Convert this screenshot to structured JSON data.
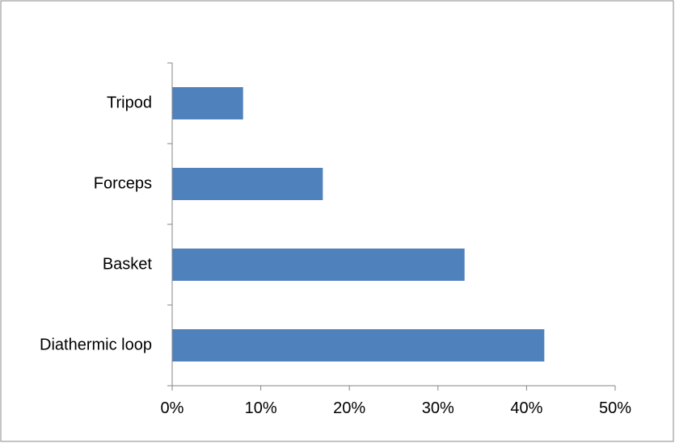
{
  "chart_data": {
    "type": "bar",
    "orientation": "horizontal",
    "categories": [
      "Tripod",
      "Forceps",
      "Basket",
      "Diathermic loop"
    ],
    "values": [
      8,
      17,
      33,
      42
    ],
    "value_unit": "%",
    "xlim": [
      0,
      50
    ],
    "x_ticks": [
      0,
      10,
      20,
      30,
      40,
      50
    ],
    "x_tick_labels": [
      "0%",
      "10%",
      "20%",
      "30%",
      "40%",
      "50%"
    ],
    "title": "",
    "xlabel": "",
    "ylabel": "",
    "grid": false,
    "legend": "none",
    "bar_color": "#4F81BD",
    "axis_color": "#868686",
    "border_color": "#898989"
  }
}
